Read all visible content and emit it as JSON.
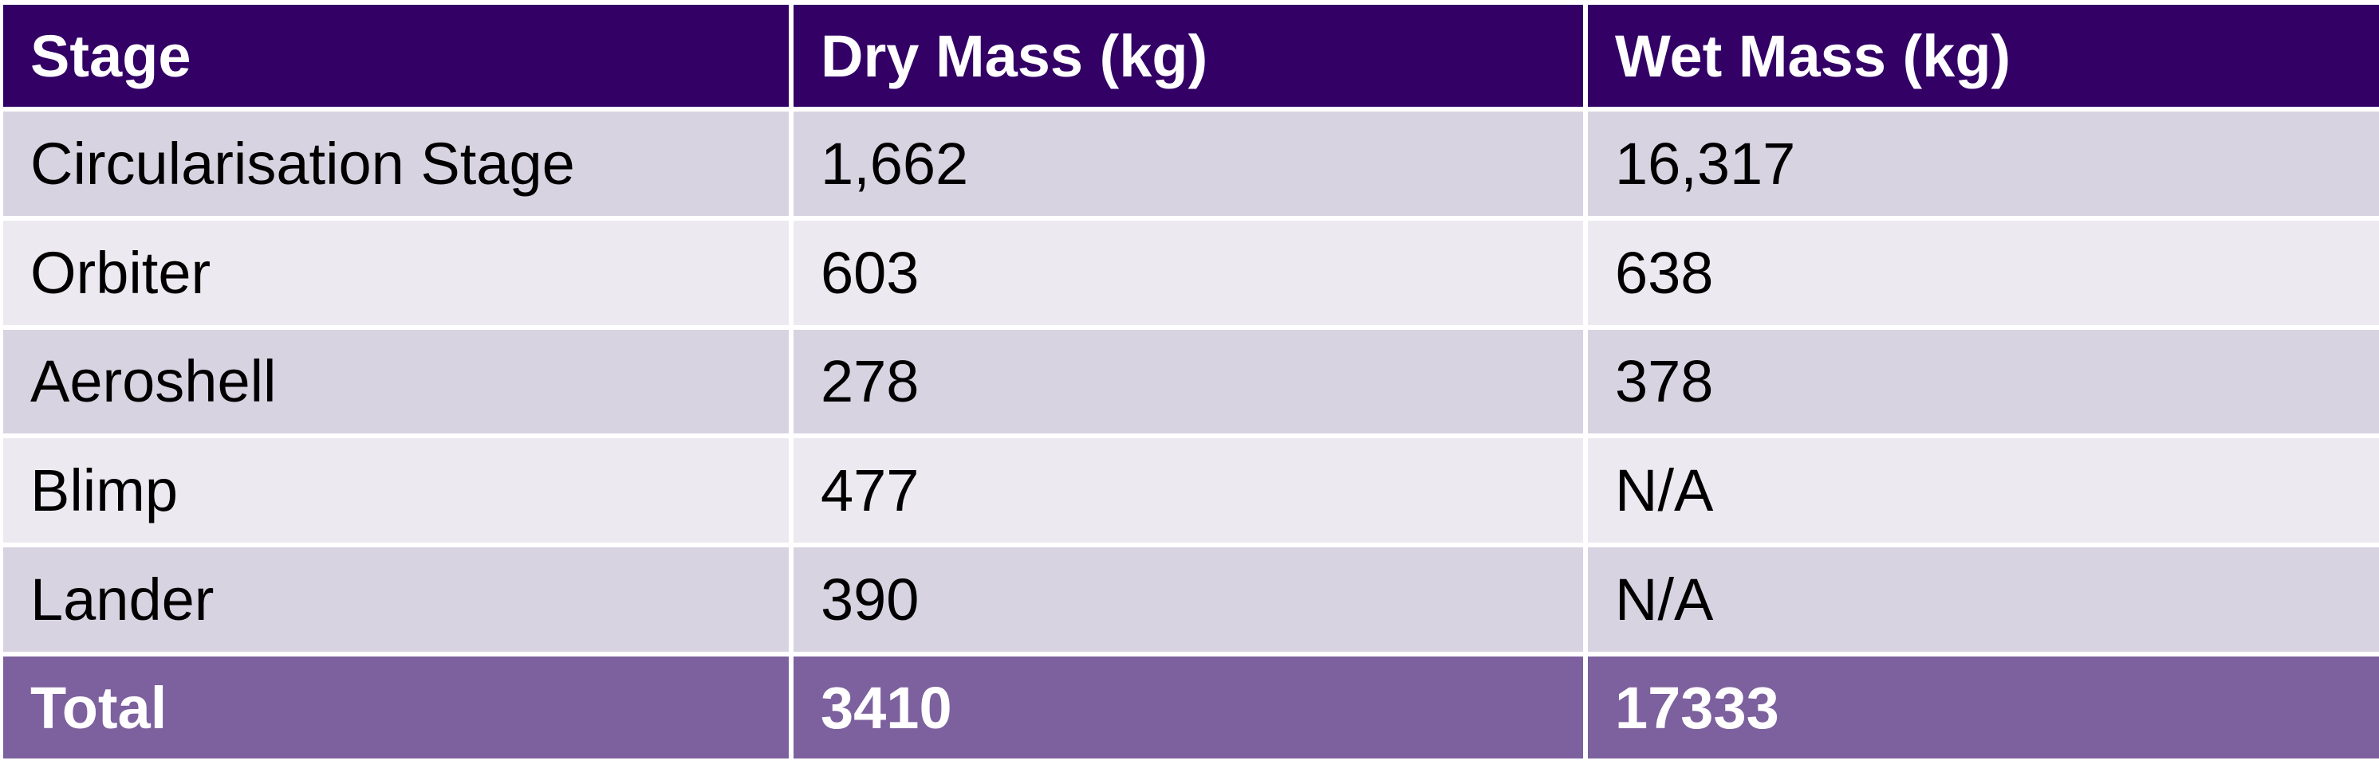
{
  "colors": {
    "header_bg": "#330066",
    "row_odd_bg": "#d7d3e1",
    "row_even_bg": "#ece9f0",
    "total_bg": "#7d619e",
    "header_text": "#ffffff",
    "body_text": "#000000"
  },
  "table": {
    "headers": [
      "Stage",
      "Dry Mass (kg)",
      "Wet Mass (kg)"
    ],
    "rows": [
      [
        "Circularisation Stage",
        "1,662",
        "16,317"
      ],
      [
        "Orbiter",
        "603",
        "638"
      ],
      [
        "Aeroshell",
        "278",
        "378"
      ],
      [
        "Blimp",
        "477",
        "N/A"
      ],
      [
        "Lander",
        "390",
        "N/A"
      ]
    ],
    "total": [
      "Total",
      "3410",
      "17333"
    ]
  }
}
